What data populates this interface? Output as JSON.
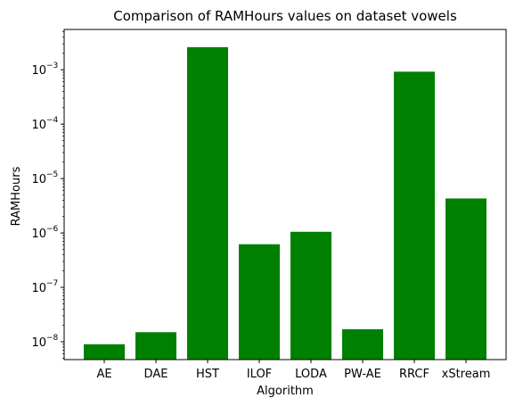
{
  "chart_data": {
    "type": "bar",
    "title": "Comparison of RAMHours values on dataset vowels",
    "xlabel": "Algorithm",
    "ylabel": "RAMHours",
    "yscale": "log",
    "ylim": [
      4.7e-09,
      0.0055
    ],
    "yticks": [
      {
        "value": 1e-08,
        "base": "10",
        "exp": "−8"
      },
      {
        "value": 1e-07,
        "base": "10",
        "exp": "−7"
      },
      {
        "value": 1e-06,
        "base": "10",
        "exp": "−6"
      },
      {
        "value": 1e-05,
        "base": "10",
        "exp": "−5"
      },
      {
        "value": 0.0001,
        "base": "10",
        "exp": "−4"
      },
      {
        "value": 0.001,
        "base": "10",
        "exp": "−3"
      }
    ],
    "categories": [
      "AE",
      "DAE",
      "HST",
      "ILOF",
      "LODA",
      "PW-AE",
      "RRCF",
      "xStream"
    ],
    "values": [
      9e-09,
      1.5e-08,
      0.0026,
      6.2e-07,
      1.05e-06,
      1.7e-08,
      0.00092,
      4.3e-06
    ],
    "bar_color": "#008000",
    "grid": false,
    "legend": null
  }
}
